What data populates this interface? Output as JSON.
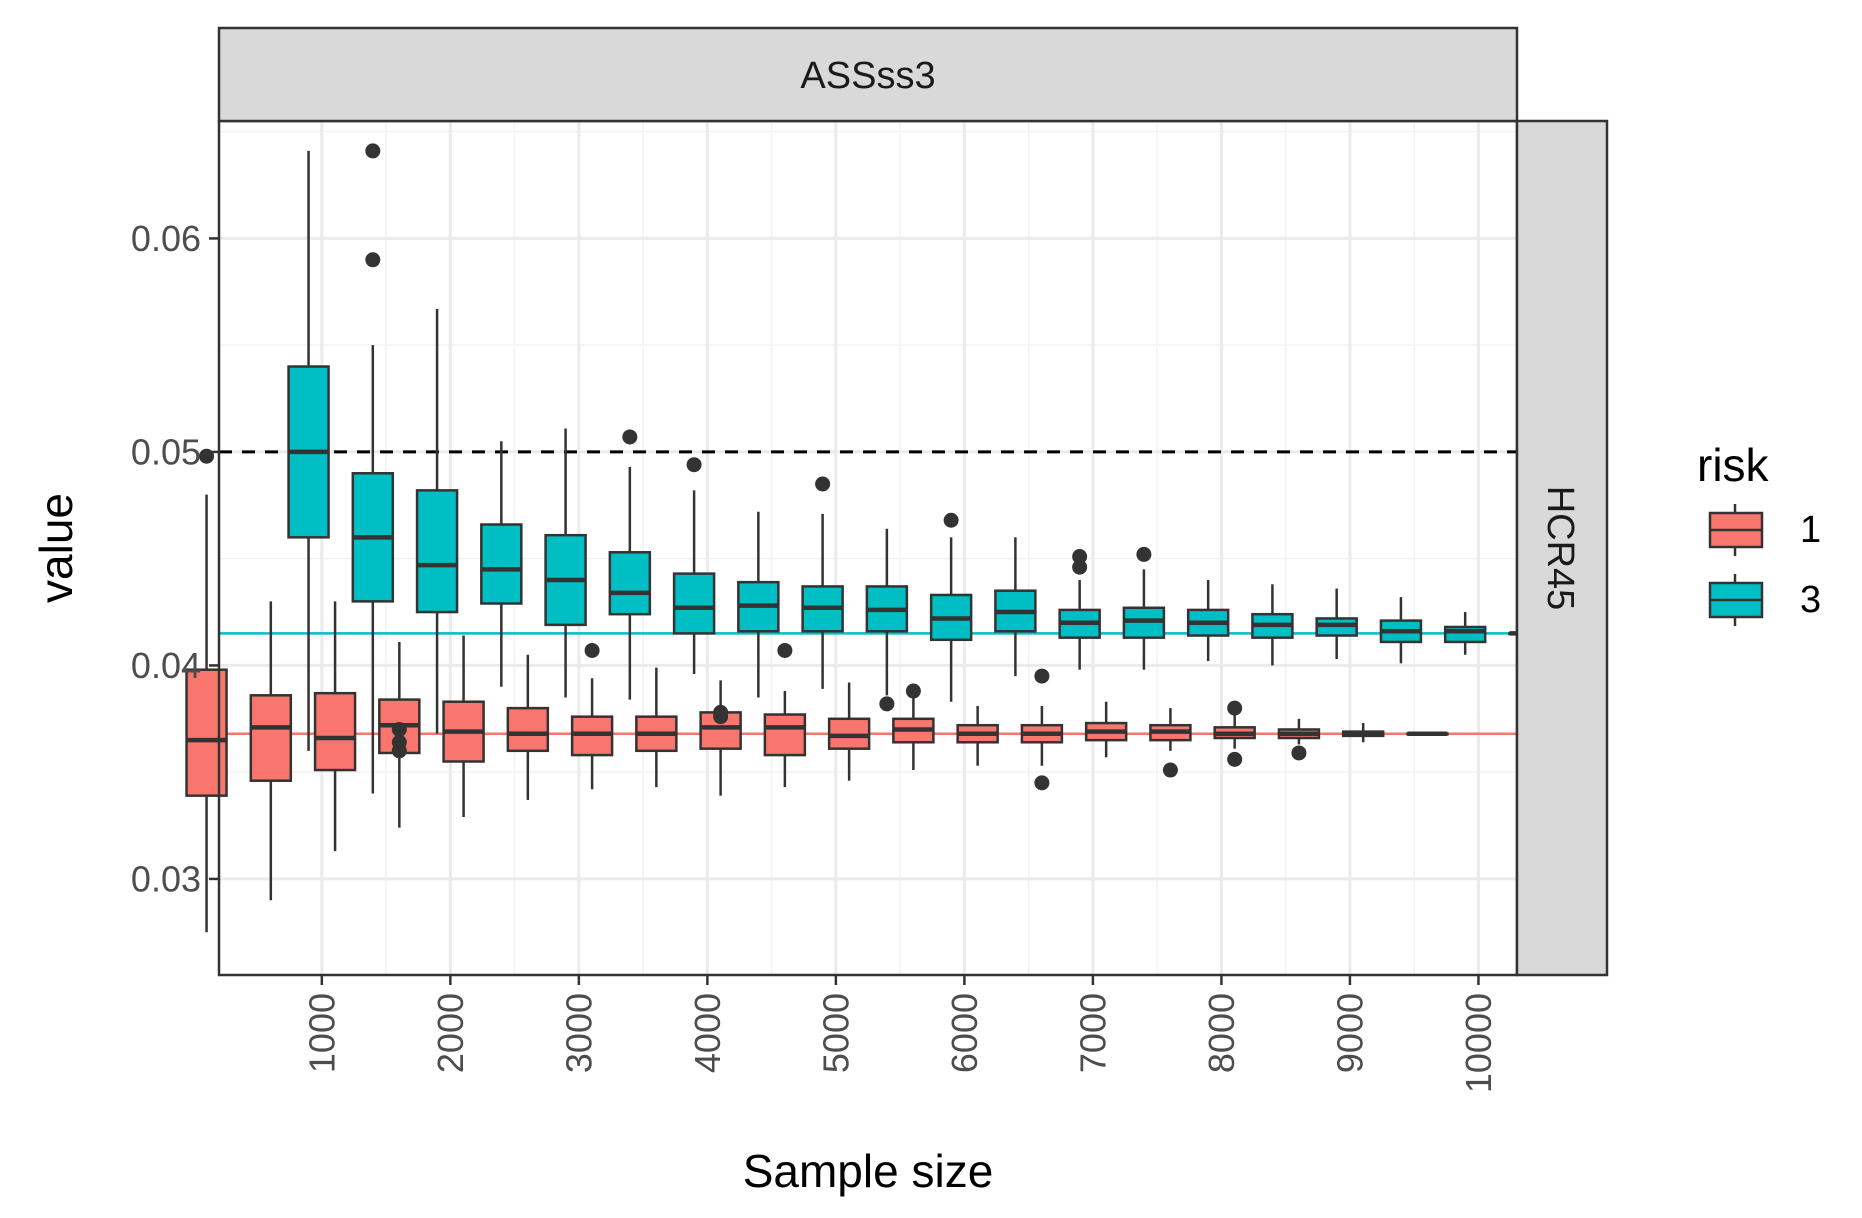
{
  "chart_data": {
    "type": "box",
    "facet_top": "ASSss3",
    "facet_right": "HCR45",
    "xlabel": "Sample size",
    "ylabel": "value",
    "xlim": [
      200,
      10300
    ],
    "ylim": [
      0.0255,
      0.0655
    ],
    "x_ticks": [
      1000,
      2000,
      3000,
      4000,
      5000,
      6000,
      7000,
      8000,
      9000,
      10000
    ],
    "x_tick_labels": [
      "1000",
      "2000",
      "3000",
      "4000",
      "5000",
      "6000",
      "7000",
      "8000",
      "9000",
      "10000"
    ],
    "y_ticks": [
      0.03,
      0.04,
      0.05,
      0.06
    ],
    "y_tick_labels": [
      "0.03",
      "0.04",
      "0.05",
      "0.06"
    ],
    "grid": true,
    "legend": {
      "title": "risk",
      "position": "right",
      "entries": [
        {
          "label": "1",
          "color": "#F8766D"
        },
        {
          "label": "3",
          "color": "#00BFC4"
        }
      ]
    },
    "reference_lines": [
      {
        "y": 0.05,
        "style": "dashed",
        "color": "#000000"
      },
      {
        "y": 0.0415,
        "style": "solid",
        "color": "#00BFC4"
      },
      {
        "y": 0.0368,
        "style": "solid",
        "color": "#F8766D"
      }
    ],
    "series": [
      {
        "name": "1",
        "color": "#F8766D",
        "boxes": [
          {
            "x": 500,
            "lower": 0.0275,
            "q1": 0.0339,
            "median": 0.0365,
            "q3": 0.0398,
            "upper": 0.048,
            "outliers": [
              0.0498
            ]
          },
          {
            "x": 1000,
            "lower": 0.029,
            "q1": 0.0346,
            "median": 0.0371,
            "q3": 0.0386,
            "upper": 0.043,
            "outliers": []
          },
          {
            "x": 1500,
            "lower": 0.0313,
            "q1": 0.0351,
            "median": 0.0366,
            "q3": 0.0387,
            "upper": 0.043,
            "outliers": []
          },
          {
            "x": 2000,
            "lower": 0.0324,
            "q1": 0.0359,
            "median": 0.0372,
            "q3": 0.0384,
            "upper": 0.0411,
            "outliers": [
              0.036,
              0.0364,
              0.037
            ]
          },
          {
            "x": 2500,
            "lower": 0.0329,
            "q1": 0.0355,
            "median": 0.0369,
            "q3": 0.0383,
            "upper": 0.0414,
            "outliers": []
          },
          {
            "x": 3000,
            "lower": 0.0337,
            "q1": 0.036,
            "median": 0.0368,
            "q3": 0.038,
            "upper": 0.0405,
            "outliers": []
          },
          {
            "x": 3500,
            "lower": 0.0342,
            "q1": 0.0358,
            "median": 0.0368,
            "q3": 0.0376,
            "upper": 0.0394,
            "outliers": [
              0.0407
            ]
          },
          {
            "x": 4000,
            "lower": 0.0343,
            "q1": 0.036,
            "median": 0.0368,
            "q3": 0.0376,
            "upper": 0.0399,
            "outliers": []
          },
          {
            "x": 4500,
            "lower": 0.0339,
            "q1": 0.0361,
            "median": 0.0371,
            "q3": 0.0378,
            "upper": 0.0393,
            "outliers": [
              0.0376,
              0.0378
            ]
          },
          {
            "x": 5000,
            "lower": 0.0343,
            "q1": 0.0358,
            "median": 0.0371,
            "q3": 0.0377,
            "upper": 0.0388,
            "outliers": [
              0.0407
            ]
          },
          {
            "x": 5500,
            "lower": 0.0346,
            "q1": 0.0361,
            "median": 0.0367,
            "q3": 0.0375,
            "upper": 0.0392,
            "outliers": []
          },
          {
            "x": 6000,
            "lower": 0.0351,
            "q1": 0.0364,
            "median": 0.037,
            "q3": 0.0375,
            "upper": 0.039,
            "outliers": [
              0.0388
            ]
          },
          {
            "x": 6500,
            "lower": 0.0353,
            "q1": 0.0364,
            "median": 0.0368,
            "q3": 0.0372,
            "upper": 0.0381,
            "outliers": []
          },
          {
            "x": 7000,
            "lower": 0.0353,
            "q1": 0.0364,
            "median": 0.0368,
            "q3": 0.0372,
            "upper": 0.0381,
            "outliers": [
              0.0345,
              0.0395
            ]
          },
          {
            "x": 7500,
            "lower": 0.0357,
            "q1": 0.0365,
            "median": 0.0369,
            "q3": 0.0373,
            "upper": 0.0383,
            "outliers": []
          },
          {
            "x": 8000,
            "lower": 0.036,
            "q1": 0.0365,
            "median": 0.0369,
            "q3": 0.0372,
            "upper": 0.038,
            "outliers": [
              0.0351
            ]
          },
          {
            "x": 8500,
            "lower": 0.0361,
            "q1": 0.0366,
            "median": 0.0368,
            "q3": 0.0371,
            "upper": 0.0377,
            "outliers": [
              0.0356,
              0.038
            ]
          },
          {
            "x": 9000,
            "lower": 0.0363,
            "q1": 0.0366,
            "median": 0.0368,
            "q3": 0.037,
            "upper": 0.0375,
            "outliers": [
              0.0359
            ]
          },
          {
            "x": 9500,
            "lower": 0.0364,
            "q1": 0.0367,
            "median": 0.0368,
            "q3": 0.0369,
            "upper": 0.0373,
            "outliers": []
          },
          {
            "x": 10000,
            "lower": 0.0368,
            "q1": 0.0368,
            "median": 0.0368,
            "q3": 0.0368,
            "upper": 0.0368,
            "outliers": []
          }
        ]
      },
      {
        "name": "3",
        "color": "#00BFC4",
        "boxes": [
          {
            "x": 500,
            "lower": 0.036,
            "q1": 0.046,
            "median": 0.05,
            "q3": 0.054,
            "upper": 0.0641,
            "outliers": []
          },
          {
            "x": 1000,
            "lower": 0.034,
            "q1": 0.043,
            "median": 0.046,
            "q3": 0.049,
            "upper": 0.055,
            "outliers": [
              0.059,
              0.0641
            ]
          },
          {
            "x": 1500,
            "lower": 0.0368,
            "q1": 0.0425,
            "median": 0.0447,
            "q3": 0.0482,
            "upper": 0.0567,
            "outliers": []
          },
          {
            "x": 2000,
            "lower": 0.039,
            "q1": 0.0429,
            "median": 0.0445,
            "q3": 0.0466,
            "upper": 0.0505,
            "outliers": []
          },
          {
            "x": 2500,
            "lower": 0.0385,
            "q1": 0.0419,
            "median": 0.044,
            "q3": 0.0461,
            "upper": 0.0511,
            "outliers": []
          },
          {
            "x": 3000,
            "lower": 0.0384,
            "q1": 0.0424,
            "median": 0.0434,
            "q3": 0.0453,
            "upper": 0.0493,
            "outliers": [
              0.0507
            ]
          },
          {
            "x": 3500,
            "lower": 0.0396,
            "q1": 0.0415,
            "median": 0.0427,
            "q3": 0.0443,
            "upper": 0.0482,
            "outliers": [
              0.0494
            ]
          },
          {
            "x": 4000,
            "lower": 0.0385,
            "q1": 0.0416,
            "median": 0.0428,
            "q3": 0.0439,
            "upper": 0.0472,
            "outliers": []
          },
          {
            "x": 4500,
            "lower": 0.0389,
            "q1": 0.0416,
            "median": 0.0427,
            "q3": 0.0437,
            "upper": 0.0471,
            "outliers": [
              0.0485
            ]
          },
          {
            "x": 5000,
            "lower": 0.0386,
            "q1": 0.0416,
            "median": 0.0426,
            "q3": 0.0437,
            "upper": 0.0464,
            "outliers": [
              0.0382
            ]
          },
          {
            "x": 5500,
            "lower": 0.0383,
            "q1": 0.0412,
            "median": 0.0422,
            "q3": 0.0433,
            "upper": 0.046,
            "outliers": [
              0.0468
            ]
          },
          {
            "x": 6000,
            "lower": 0.0395,
            "q1": 0.0416,
            "median": 0.0425,
            "q3": 0.0435,
            "upper": 0.046,
            "outliers": []
          },
          {
            "x": 6500,
            "lower": 0.0398,
            "q1": 0.0413,
            "median": 0.042,
            "q3": 0.0426,
            "upper": 0.044,
            "outliers": [
              0.0446,
              0.0451
            ]
          },
          {
            "x": 7000,
            "lower": 0.0398,
            "q1": 0.0413,
            "median": 0.0421,
            "q3": 0.0427,
            "upper": 0.0445,
            "outliers": [
              0.0452
            ]
          },
          {
            "x": 7500,
            "lower": 0.0402,
            "q1": 0.0414,
            "median": 0.042,
            "q3": 0.0426,
            "upper": 0.044,
            "outliers": []
          },
          {
            "x": 8000,
            "lower": 0.04,
            "q1": 0.0413,
            "median": 0.0419,
            "q3": 0.0424,
            "upper": 0.0438,
            "outliers": []
          },
          {
            "x": 8500,
            "lower": 0.0403,
            "q1": 0.0414,
            "median": 0.0419,
            "q3": 0.0422,
            "upper": 0.0436,
            "outliers": []
          },
          {
            "x": 9000,
            "lower": 0.0401,
            "q1": 0.0411,
            "median": 0.0416,
            "q3": 0.0421,
            "upper": 0.0432,
            "outliers": []
          },
          {
            "x": 9500,
            "lower": 0.0405,
            "q1": 0.0411,
            "median": 0.0416,
            "q3": 0.0418,
            "upper": 0.0425,
            "outliers": []
          },
          {
            "x": 10000,
            "lower": 0.0415,
            "q1": 0.0415,
            "median": 0.0415,
            "q3": 0.0415,
            "upper": 0.0415,
            "outliers": []
          }
        ]
      }
    ]
  }
}
